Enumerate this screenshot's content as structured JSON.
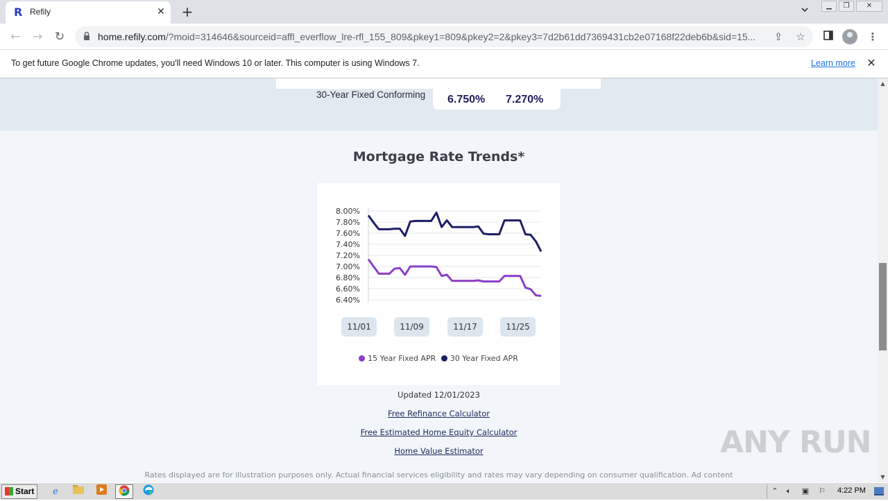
{
  "browser": {
    "tab_title": "Refily",
    "tab_favicon": "R",
    "url_host": "home.refily.com",
    "url_rest": "/?moid=314646&sourceid=affl_everflow_lre-rfl_155_809&pkey1=809&pkey2=2&pkey3=7d2b61dd7369431cb2e07168f22deb6b&sid=15..."
  },
  "infobar": {
    "message": "To get future Google Chrome updates, you'll need Windows 10 or later. This computer is using Windows 7.",
    "learn_more": "Learn more"
  },
  "rates": {
    "label": "30-Year Fixed Conforming",
    "rate": "6.750%",
    "apr": "7.270%"
  },
  "trends": {
    "title": "Mortgage Rate Trends*",
    "updated": "Updated 12/01/2023"
  },
  "chart_data": {
    "type": "line",
    "title": "Mortgage Rate Trends*",
    "ylim": [
      6.3,
      8.05
    ],
    "yticks": [
      "8.00%",
      "7.80%",
      "7.60%",
      "7.40%",
      "7.20%",
      "7.00%",
      "6.80%",
      "6.60%",
      "6.40%"
    ],
    "x_labels": [
      "11/01",
      "11/09",
      "11/17",
      "11/25"
    ],
    "legend_position": "bottom",
    "grid": true,
    "series": [
      {
        "name": "15 Year Fixed APR",
        "color": "#8a3fc8",
        "values": [
          7.13,
          7.0,
          6.87,
          6.87,
          6.87,
          6.96,
          6.97,
          6.85,
          7.0,
          7.0,
          7.0,
          7.0,
          7.0,
          6.99,
          6.83,
          6.85,
          6.74,
          6.74,
          6.74,
          6.74,
          6.74,
          6.75,
          6.73,
          6.73,
          6.73,
          6.73,
          6.83,
          6.83,
          6.83,
          6.83,
          6.62,
          6.59,
          6.48,
          6.47
        ]
      },
      {
        "name": "30 Year Fixed APR",
        "color": "#1e1e64",
        "values": [
          7.92,
          7.79,
          7.67,
          7.67,
          7.67,
          7.68,
          7.68,
          7.55,
          7.81,
          7.82,
          7.82,
          7.82,
          7.82,
          7.97,
          7.71,
          7.83,
          7.71,
          7.71,
          7.71,
          7.71,
          7.71,
          7.72,
          7.59,
          7.58,
          7.58,
          7.58,
          7.83,
          7.83,
          7.83,
          7.83,
          7.58,
          7.57,
          7.45,
          7.27
        ]
      }
    ]
  },
  "links": {
    "refinance": "Free Refinance Calculator",
    "home_equity": "Free Estimated Home Equity Calculator",
    "home_value": "Home Value Estimator"
  },
  "disclaimer": "Rates displayed are for illustration purposes only. Actual financial services eligibility and rates may vary depending on consumer qualification. Ad content",
  "watermark": "ANY RUN",
  "taskbar": {
    "start": "Start",
    "clock": "4:22 PM"
  }
}
